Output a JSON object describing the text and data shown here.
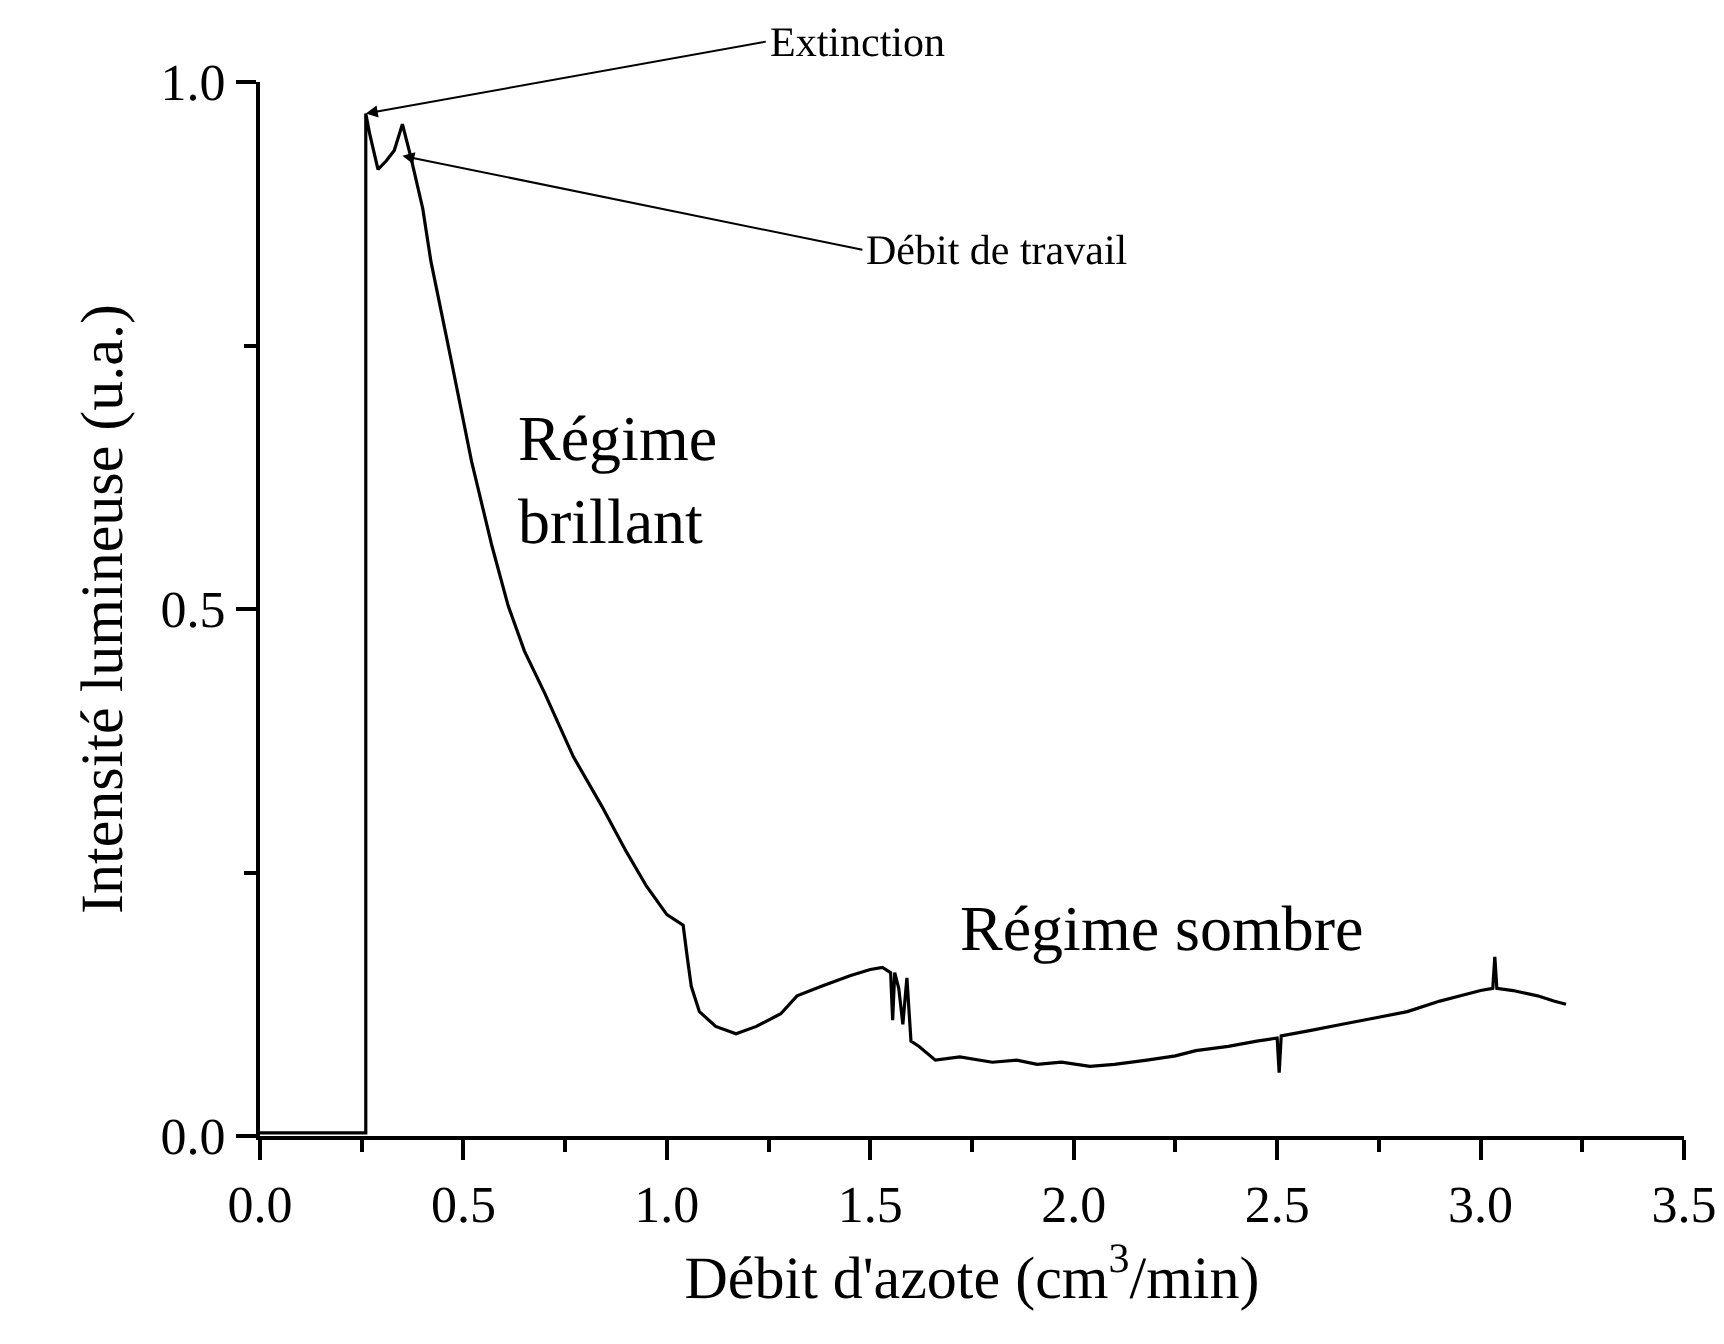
{
  "chart_data": {
    "type": "line",
    "xlabel": "Débit d'azote (cm$^{3}$/min)",
    "ylabel": "Intensité lumineuse (u.a.)",
    "xlim": [
      0,
      3.5
    ],
    "xticks": [
      {
        "value": 0,
        "label": "0.0"
      },
      0.5,
      {
        "value": 1,
        "label": "1.0"
      },
      1.5,
      {
        "value": 2,
        "label": "2.0"
      },
      2.5,
      {
        "value": 3,
        "label": "3.0"
      },
      3.5
    ],
    "ylim": [
      0,
      1
    ],
    "yticks": [
      {
        "value": 0,
        "label": "0.0"
      },
      0.5,
      {
        "value": 1,
        "label": "1.0"
      }
    ],
    "grid": false,
    "marker": "none",
    "line_style": "solid",
    "series": [
      {
        "color": "#000000",
        "x": [
          0,
          0.26,
          0.26,
          0.27,
          0.29,
          0.31,
          0.33,
          0.35,
          0.37,
          0.4,
          0.42,
          0.47,
          0.52,
          0.57,
          0.61,
          0.65,
          0.7,
          0.77,
          0.84,
          0.9,
          0.95,
          1.0,
          1.04,
          1.05,
          1.06,
          1.08,
          1.12,
          1.17,
          1.22,
          1.28,
          1.32,
          1.38,
          1.45,
          1.5,
          1.53,
          1.55,
          1.555,
          1.56,
          1.57,
          1.58,
          1.59,
          1.6,
          1.62,
          1.66,
          1.72,
          1.8,
          1.86,
          1.91,
          1.97,
          2.04,
          2.1,
          2.18,
          2.25,
          2.3,
          2.38,
          2.45,
          2.5,
          2.505,
          2.51,
          2.58,
          2.66,
          2.74,
          2.82,
          2.9,
          2.96,
          3.0,
          3.03,
          3.035,
          3.04,
          3.08,
          3.14,
          3.18,
          3.21
        ],
        "values": [
          0.003,
          0.003,
          0.97,
          0.95,
          0.917,
          0.925,
          0.935,
          0.96,
          0.93,
          0.88,
          0.83,
          0.736,
          0.64,
          0.56,
          0.503,
          0.46,
          0.42,
          0.36,
          0.313,
          0.27,
          0.237,
          0.21,
          0.2,
          0.17,
          0.142,
          0.118,
          0.104,
          0.097,
          0.104,
          0.116,
          0.133,
          0.142,
          0.152,
          0.158,
          0.16,
          0.155,
          0.11,
          0.155,
          0.14,
          0.106,
          0.15,
          0.09,
          0.085,
          0.072,
          0.075,
          0.07,
          0.072,
          0.068,
          0.07,
          0.066,
          0.068,
          0.072,
          0.076,
          0.081,
          0.085,
          0.09,
          0.093,
          0.06,
          0.095,
          0.1,
          0.106,
          0.112,
          0.118,
          0.128,
          0.134,
          0.138,
          0.14,
          0.17,
          0.14,
          0.138,
          0.133,
          0.128,
          0.125
        ]
      }
    ],
    "annotations": [
      {
        "text": "Extinction",
        "x": 0.26,
        "y": 0.97
      },
      {
        "text": "Débit de travail",
        "x": 0.35,
        "y": 0.93
      },
      "Régime\nbrillant",
      "Régime sombre"
    ]
  }
}
